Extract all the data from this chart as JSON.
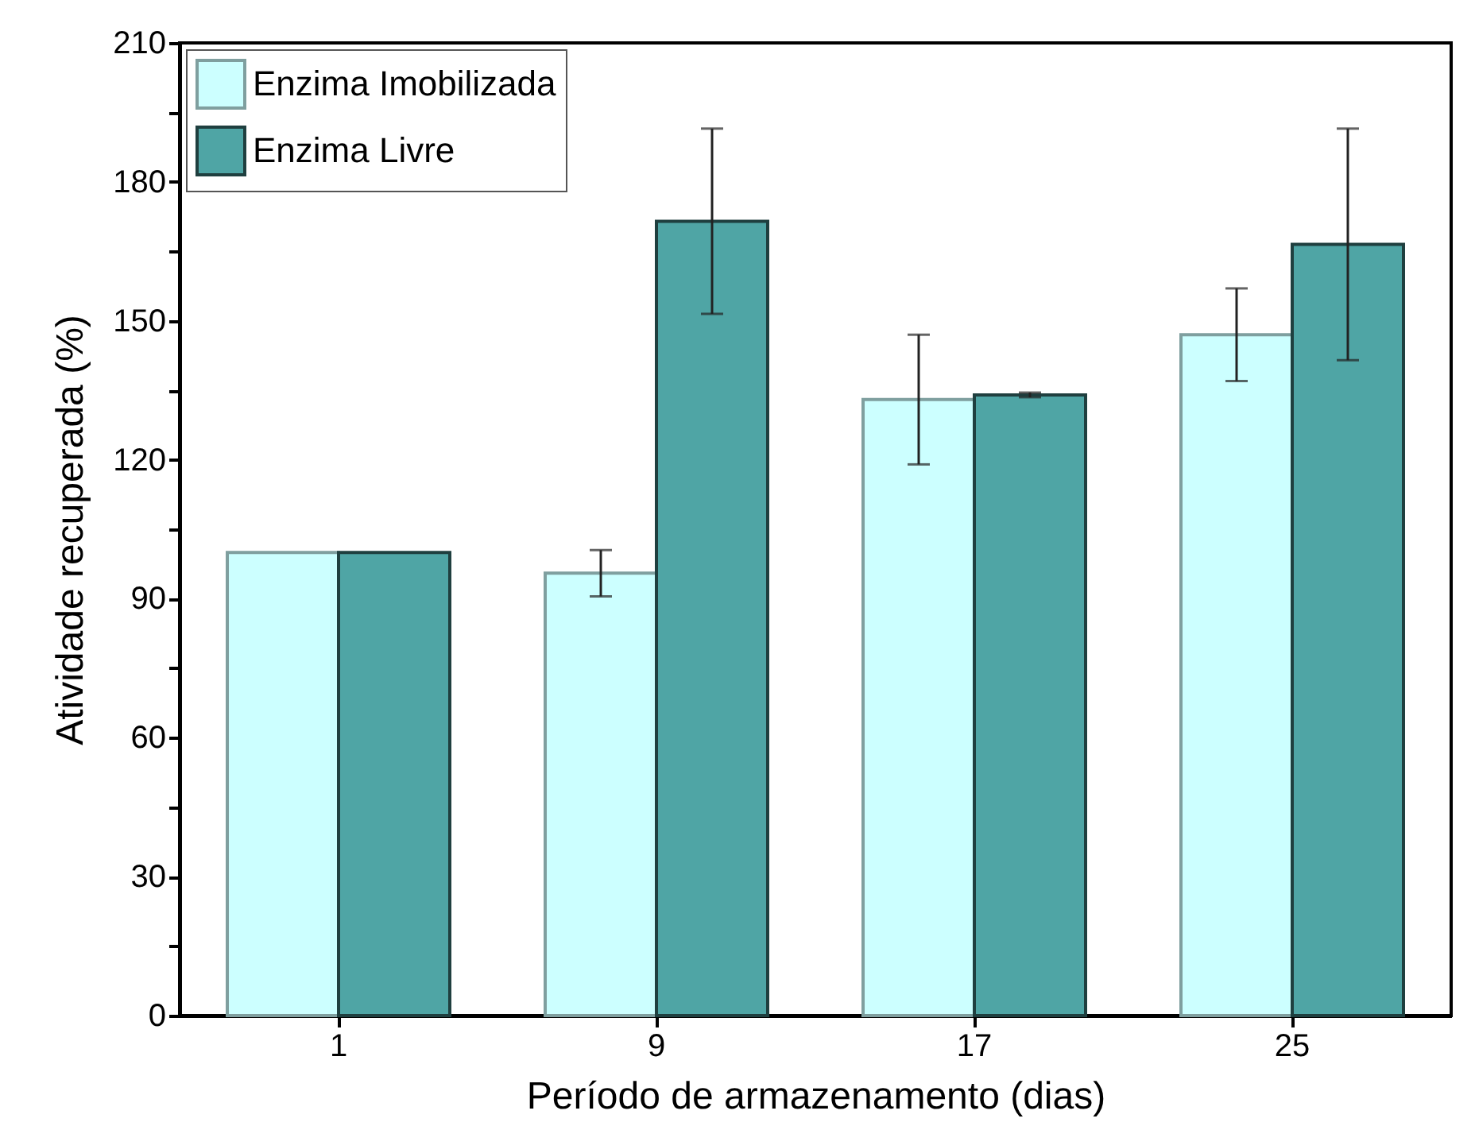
{
  "chart_data": {
    "type": "bar",
    "xlabel": "Período de armazenamento (dias)",
    "ylabel": "Atividade recuperada (%)",
    "categories": [
      "1",
      "9",
      "17",
      "25"
    ],
    "series": [
      {
        "name": "Enzima Imobilizada",
        "color": "#ccffff",
        "values": [
          100,
          95.5,
          133,
          147
        ],
        "errors": [
          null,
          5,
          14,
          10
        ]
      },
      {
        "name": "Enzima Livre",
        "color": "#4fa5a5",
        "values": [
          100,
          171.5,
          134,
          166.5
        ],
        "errors": [
          null,
          20,
          0.5,
          25
        ]
      }
    ],
    "ylim": [
      0,
      210
    ],
    "yticks": [
      0,
      {
        "value": 15,
        "label": null
      },
      30,
      {
        "value": 45,
        "label": null
      },
      60,
      {
        "value": 75,
        "label": null
      },
      90,
      {
        "value": 105,
        "label": null
      },
      120,
      {
        "value": 135,
        "label": null
      },
      150,
      {
        "value": 165,
        "label": null
      },
      180,
      {
        "value": 195,
        "label": null
      },
      210
    ],
    "grid": false,
    "legend": "top left"
  }
}
